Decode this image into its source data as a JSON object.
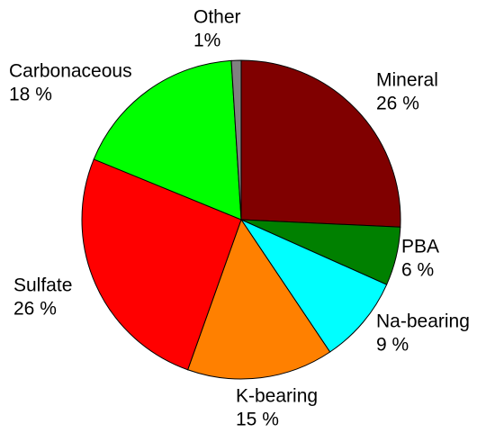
{
  "chart_data": {
    "type": "pie",
    "categories": [
      "Mineral",
      "PBA",
      "Na-bearing",
      "K-bearing",
      "Sulfate",
      "Carbonaceous",
      "Other"
    ],
    "values": [
      26,
      6,
      9,
      15,
      26,
      18,
      1
    ],
    "value_labels": [
      "26 %",
      "6 %",
      "9 %",
      "15 %",
      "26 %",
      "18 %",
      "1%"
    ],
    "colors": [
      "#800000",
      "#008000",
      "#00ffff",
      "#ff8000",
      "#ff0000",
      "#00ff00",
      "#808080"
    ]
  }
}
